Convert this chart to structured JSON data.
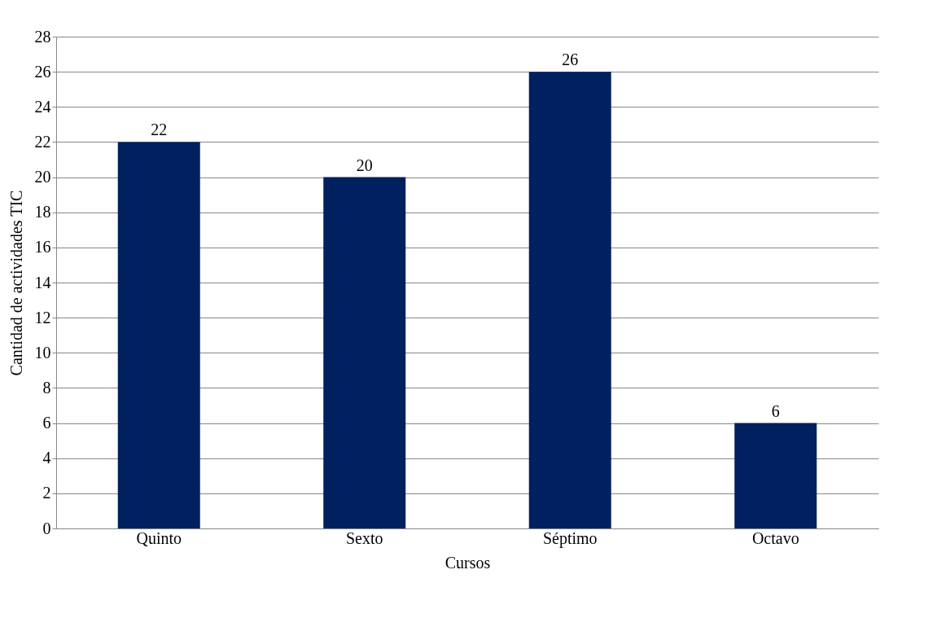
{
  "chart_data": {
    "type": "bar",
    "xlabel": "Cursos",
    "ylabel": "Cantidad de actividades TIC",
    "categories": [
      "Quinto",
      "Sexto",
      "Séptimo",
      "Octavo"
    ],
    "values": [
      22,
      20,
      26,
      6
    ],
    "color": "#002060",
    "ylim": [
      0,
      28
    ],
    "yticks": [
      0,
      2,
      4,
      6,
      8,
      10,
      12,
      14,
      16,
      18,
      20,
      22,
      24,
      26,
      28
    ],
    "grid": "y",
    "data_labels": true
  }
}
